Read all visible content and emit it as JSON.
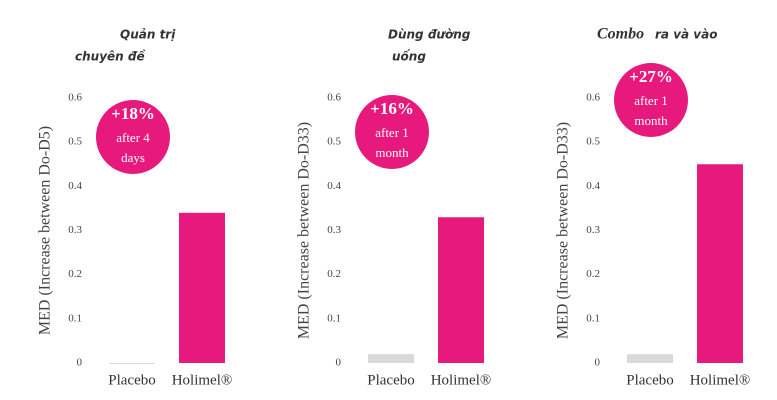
{
  "chart_data": [
    {
      "type": "bar",
      "title": [
        "Quản trị",
        "chuyên đề"
      ],
      "y_label": "MED (Increase between Do-D5)",
      "categories": [
        "Placebo",
        "Holimel®"
      ],
      "values": [
        0,
        0.34
      ],
      "colors": [
        "#d9d9d9",
        "#e8197d"
      ],
      "ylim": [
        0,
        0.6
      ],
      "yticks": [
        0,
        0.1,
        0.2,
        0.3,
        0.4,
        0.5,
        0.6
      ],
      "annotation": [
        "+18%",
        "after 4",
        "days"
      ],
      "annotation_color": "#e8197d"
    },
    {
      "type": "bar",
      "title": [
        "Dùng đường",
        "uống"
      ],
      "y_label": "MED (Increase between Do-D33)",
      "categories": [
        "Placebo",
        "Holimel®"
      ],
      "values": [
        0.02,
        0.33
      ],
      "colors": [
        "#d9d9d9",
        "#e8197d"
      ],
      "ylim": [
        0,
        0.6
      ],
      "yticks": [
        0,
        0.1,
        0.2,
        0.3,
        0.4,
        0.5,
        0.6
      ],
      "annotation": [
        "+16%",
        "after 1",
        "month"
      ],
      "annotation_color": "#e8197d"
    },
    {
      "type": "bar",
      "title": [
        "Combo",
        "ra và vào"
      ],
      "y_label": "MED (Increase between Do-D33)",
      "categories": [
        "Placebo",
        "Holimel®"
      ],
      "values": [
        0.02,
        0.45
      ],
      "colors": [
        "#d9d9d9",
        "#e8197d"
      ],
      "ylim": [
        0,
        0.6
      ],
      "yticks": [
        0,
        0.1,
        0.2,
        0.3,
        0.4,
        0.5,
        0.6
      ],
      "annotation": [
        "+27%",
        "after 1",
        "month"
      ],
      "annotation_color": "#e8197d"
    }
  ]
}
